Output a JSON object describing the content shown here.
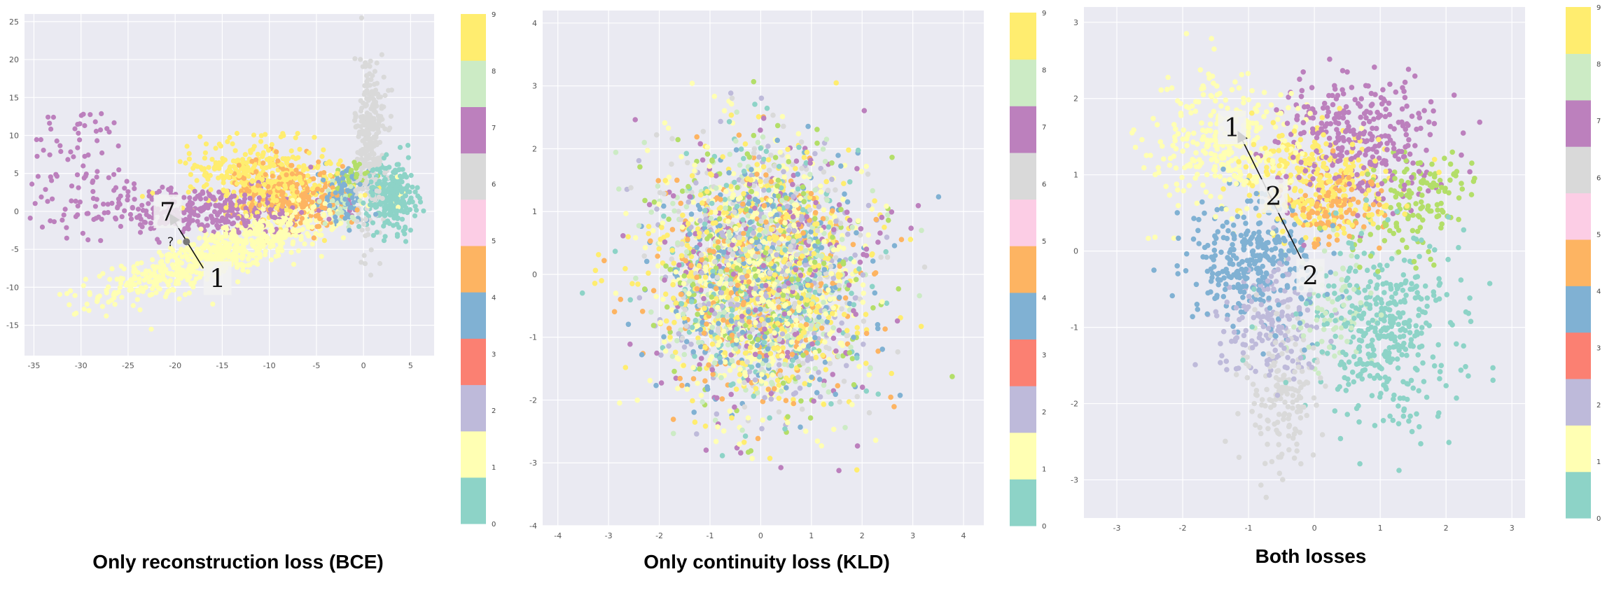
{
  "palette": [
    "#8dd3c7",
    "#ffffb3",
    "#bebada",
    "#fb8072",
    "#80b1d3",
    "#fdb462",
    "#b3de69",
    "#fccde5",
    "#d9d9d9",
    "#bc80bd",
    "#ccebc5",
    "#ffed6f"
  ],
  "colorbar_labels": [
    "0",
    "1",
    "2",
    "3",
    "4",
    "5",
    "6",
    "7",
    "8",
    "9"
  ],
  "chart_data": [
    {
      "type": "scatter",
      "title": "Only reconstruction loss (BCE)",
      "xlabel": "",
      "ylabel": "",
      "xlim": [
        -36,
        7.5
      ],
      "ylim": [
        -19,
        26
      ],
      "xticks": [
        -35,
        -30,
        -25,
        -20,
        -15,
        -10,
        -5,
        0,
        5
      ],
      "yticks": [
        -15,
        -10,
        -5,
        0,
        5,
        10,
        15,
        20,
        25
      ],
      "grid": true,
      "colorbar": "right",
      "clusters": [
        {
          "label": 1,
          "center": [
            -15,
            -5.5
          ],
          "spread": [
            7,
            1.5
          ],
          "angle": 0.4,
          "n": 700
        },
        {
          "label": 7,
          "center": [
            -17,
            0
          ],
          "spread": [
            7,
            1.6
          ],
          "angle": 0.03,
          "n": 360
        },
        {
          "label": 7,
          "center": [
            -30,
            7
          ],
          "spread": [
            3,
            3.5
          ],
          "angle": 0,
          "n": 70
        },
        {
          "label": 9,
          "center": [
            -10.5,
            4.5
          ],
          "spread": [
            3.8,
            2.4
          ],
          "angle": -0.2,
          "n": 420
        },
        {
          "label": 4,
          "center": [
            -8,
            2.5
          ],
          "spread": [
            3,
            2
          ],
          "angle": -0.3,
          "n": 260
        },
        {
          "label": 6,
          "center": [
            0.7,
            9
          ],
          "spread": [
            0.8,
            6
          ],
          "angle": 0,
          "n": 300
        },
        {
          "label": 0,
          "center": [
            3,
            2
          ],
          "spread": [
            1.3,
            2.3
          ],
          "angle": 0,
          "n": 260
        },
        {
          "label": 3,
          "center": [
            -2,
            2
          ],
          "spread": [
            1.3,
            1.8
          ],
          "angle": 0,
          "n": 110
        },
        {
          "label": 5,
          "center": [
            -1.5,
            4.5
          ],
          "spread": [
            1,
            1
          ],
          "angle": 0,
          "n": 40
        },
        {
          "label": 8,
          "center": [
            -2.5,
            1
          ],
          "spread": [
            1.5,
            1.5
          ],
          "angle": 0,
          "n": 40
        }
      ],
      "annotations": [
        {
          "text": "7",
          "at": [
            -20.8,
            0
          ]
        },
        {
          "text": "1",
          "at": [
            -15.5,
            -8.8
          ]
        },
        {
          "text": "?",
          "at": [
            -19.6,
            -4
          ]
        }
      ],
      "arrow": {
        "from": [
          -17,
          -7.5
        ],
        "to": [
          -20.5,
          -0.5
        ],
        "midpoint": [
          -18.8,
          -4
        ]
      }
    },
    {
      "type": "scatter",
      "title": "Only continuity loss (KLD)",
      "xlabel": "",
      "ylabel": "",
      "xlim": [
        -4.3,
        4.4
      ],
      "ylim": [
        -4,
        4.2
      ],
      "xticks": [
        -4,
        -3,
        -2,
        -1,
        0,
        1,
        2,
        3,
        4
      ],
      "yticks": [
        -4,
        -3,
        -2,
        -1,
        0,
        1,
        2,
        3,
        4
      ],
      "grid": true,
      "colorbar": "right",
      "clusters": [
        {
          "label": "mixed",
          "center": [
            0,
            0
          ],
          "spread": [
            1,
            1
          ],
          "angle": 0,
          "n": 3200
        }
      ]
    },
    {
      "type": "scatter",
      "title": "Both losses",
      "xlabel": "",
      "ylabel": "",
      "xlim": [
        -3.5,
        3.2
      ],
      "ylim": [
        -3.5,
        3.2
      ],
      "xticks": [
        -3,
        -2,
        -1,
        0,
        1,
        2,
        3
      ],
      "yticks": [
        -3,
        -2,
        -1,
        0,
        1,
        2,
        3
      ],
      "grid": true,
      "colorbar": "right",
      "clusters": [
        {
          "label": 1,
          "center": [
            -1.4,
            1.4
          ],
          "spread": [
            0.55,
            0.45
          ],
          "angle": 0,
          "n": 320
        },
        {
          "label": 7,
          "center": [
            0.6,
            1.5
          ],
          "spread": [
            0.6,
            0.45
          ],
          "angle": 0,
          "n": 330
        },
        {
          "label": 9,
          "center": [
            0.1,
            0.9
          ],
          "spread": [
            0.55,
            0.35
          ],
          "angle": 0,
          "n": 280
        },
        {
          "label": 4,
          "center": [
            0.3,
            0.6
          ],
          "spread": [
            0.35,
            0.25
          ],
          "angle": 0,
          "n": 120
        },
        {
          "label": 5,
          "center": [
            1.5,
            0.6
          ],
          "spread": [
            0.45,
            0.3
          ],
          "angle": 0.5,
          "n": 140
        },
        {
          "label": 3,
          "center": [
            -0.9,
            -0.1
          ],
          "spread": [
            0.5,
            0.4
          ],
          "angle": 0,
          "n": 320
        },
        {
          "label": 2,
          "center": [
            -0.7,
            -0.9
          ],
          "spread": [
            0.4,
            0.4
          ],
          "angle": 0,
          "n": 150
        },
        {
          "label": 0,
          "center": [
            1.1,
            -1
          ],
          "spread": [
            0.55,
            0.6
          ],
          "angle": 0,
          "n": 400
        },
        {
          "label": 6,
          "center": [
            -0.5,
            -1.9
          ],
          "spread": [
            0.3,
            0.5
          ],
          "angle": 0,
          "n": 160
        },
        {
          "label": 8,
          "center": [
            0.3,
            -0.7
          ],
          "spread": [
            0.4,
            0.4
          ],
          "angle": 0,
          "n": 70
        }
      ],
      "annotations": [
        {
          "text": "1",
          "at": [
            -1.25,
            1.62
          ]
        },
        {
          "text": "2",
          "at": [
            -0.62,
            0.72
          ]
        },
        {
          "text": "2",
          "at": [
            -0.06,
            -0.32
          ]
        }
      ],
      "arrow": {
        "from": [
          -0.2,
          -0.1
        ],
        "to": [
          -1.15,
          1.55
        ]
      }
    }
  ]
}
